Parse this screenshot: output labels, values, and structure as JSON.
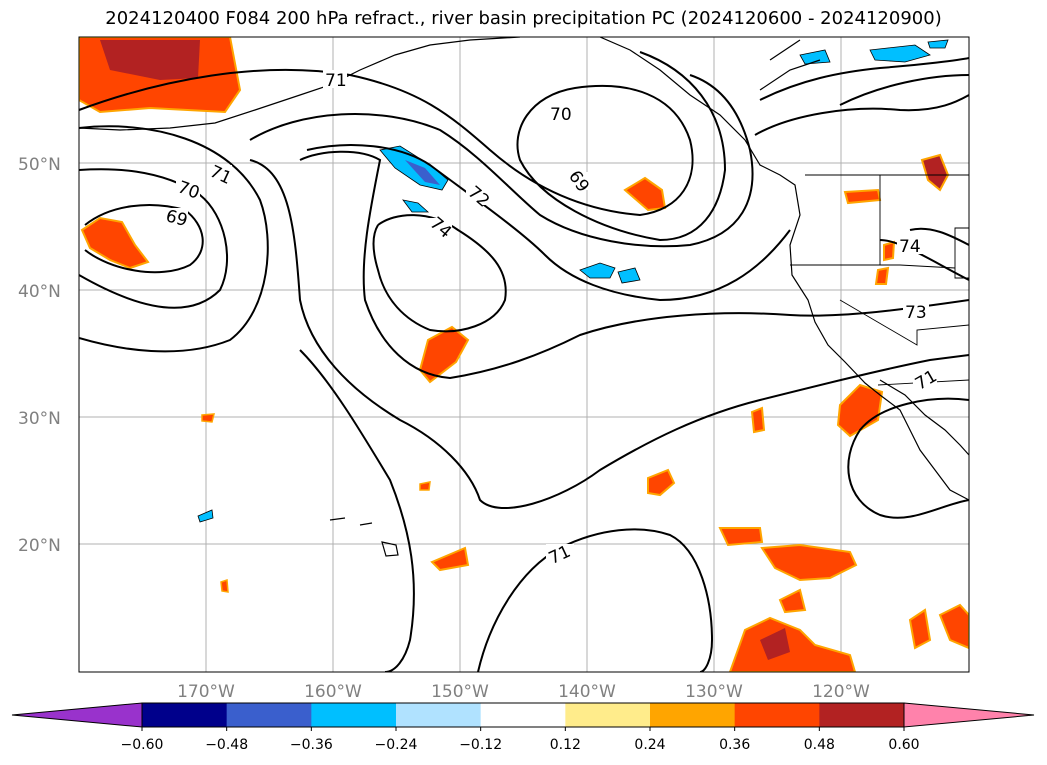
{
  "title": "2024120400 F084 200 hPa refract., river basin precipitation PC (2024120600 - 2024120900)",
  "map": {
    "lat_labels": [
      "50°N",
      "40°N",
      "30°N",
      "20°N"
    ],
    "lon_labels": [
      "170°W",
      "160°W",
      "150°W",
      "140°W",
      "130°W",
      "120°W"
    ],
    "contour_labels": [
      "71",
      "70",
      "69",
      "71",
      "72",
      "74",
      "70",
      "69",
      "74",
      "73",
      "71",
      "71"
    ]
  },
  "colorbar": {
    "ticks": [
      "−0.60",
      "−0.48",
      "−0.36",
      "−0.24",
      "−0.12",
      "0.12",
      "0.24",
      "0.36",
      "0.48",
      "0.60"
    ],
    "colors": [
      "#9932cc",
      "#00008b",
      "#3a5fcd",
      "#00bfff",
      "#b0e2ff",
      "#ffffff",
      "#ffec8b",
      "#ffa500",
      "#ff4500",
      "#b22222",
      "#ff82ab"
    ]
  }
}
